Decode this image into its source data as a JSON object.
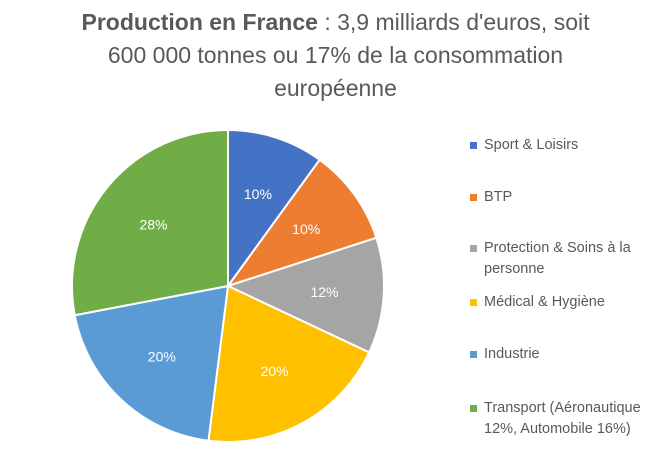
{
  "title": {
    "bold_part": "Production en France",
    "rest_line1": " : 3,9 milliards d'euros, soit",
    "line2": "600 000 tonnes ou 17% de la consommation",
    "line3": "européenne"
  },
  "chart_data": {
    "type": "pie",
    "slices": [
      {
        "name": "Sport & Loisirs",
        "value": 10,
        "label": "10%",
        "color": "#4472C4"
      },
      {
        "name": "BTP",
        "value": 10,
        "label": "10%",
        "color": "#ED7D31"
      },
      {
        "name": "Protection & Soins à la personne",
        "value": 12,
        "label": "12%",
        "color": "#A5A5A5"
      },
      {
        "name": "Médical & Hygiène",
        "value": 20,
        "label": "20%",
        "color": "#FFC000"
      },
      {
        "name": "Industrie",
        "value": 20,
        "label": "20%",
        "color": "#5B9BD5"
      },
      {
        "name": "Transport (Aéronautique 12%, Automobile 16%)",
        "value": 28,
        "label": "28%",
        "color": "#70AD47"
      }
    ],
    "legend_position": "right"
  },
  "legend": {
    "items": [
      {
        "lines": [
          "Sport & Loisirs"
        ],
        "color": "#4472C4"
      },
      {
        "lines": [
          "BTP"
        ],
        "color": "#ED7D31"
      },
      {
        "lines": [
          "Protection & Soins à la",
          "personne"
        ],
        "color": "#A5A5A5"
      },
      {
        "lines": [
          "Médical & Hygiène"
        ],
        "color": "#FFC000"
      },
      {
        "lines": [
          "Industrie"
        ],
        "color": "#5B9BD5"
      },
      {
        "lines": [
          "Transport (Aéronautique",
          "12%, Automobile 16%)"
        ],
        "color": "#70AD47"
      }
    ]
  }
}
